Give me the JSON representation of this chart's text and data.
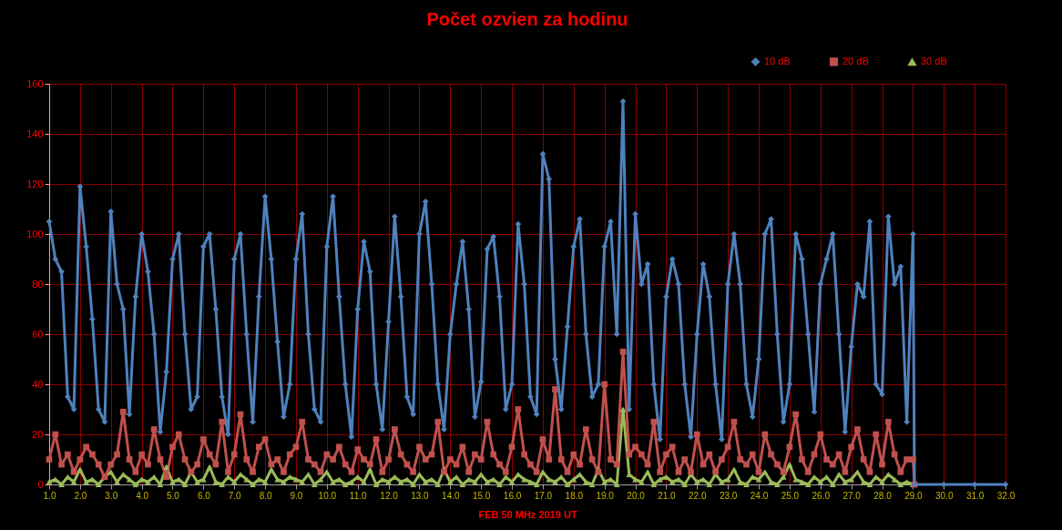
{
  "chart_data": {
    "type": "line",
    "title": "Počet ozvien za hodinu",
    "xlabel": "FEB 50 MHz  2019  UT",
    "x": [
      1,
      1.2,
      1.4,
      1.6,
      1.8,
      2,
      2.2,
      2.4,
      2.6,
      2.8,
      3,
      3.2,
      3.4,
      3.6,
      3.8,
      4,
      4.2,
      4.4,
      4.6,
      4.8,
      5,
      5.2,
      5.4,
      5.6,
      5.8,
      6,
      6.2,
      6.4,
      6.6,
      6.8,
      7,
      7.2,
      7.4,
      7.6,
      7.8,
      8,
      8.2,
      8.4,
      8.6,
      8.8,
      9,
      9.2,
      9.4,
      9.6,
      9.8,
      10,
      10.2,
      10.4,
      10.6,
      10.8,
      11,
      11.2,
      11.4,
      11.6,
      11.8,
      12,
      12.2,
      12.4,
      12.6,
      12.8,
      13,
      13.2,
      13.4,
      13.6,
      13.8,
      14,
      14.2,
      14.4,
      14.6,
      14.8,
      15,
      15.2,
      15.4,
      15.6,
      15.8,
      16,
      16.2,
      16.4,
      16.6,
      16.8,
      17,
      17.2,
      17.4,
      17.6,
      17.8,
      18,
      18.2,
      18.4,
      18.6,
      18.8,
      19,
      19.2,
      19.4,
      19.6,
      19.8,
      20,
      20.2,
      20.4,
      20.6,
      20.8,
      21,
      21.2,
      21.4,
      21.6,
      21.8,
      22,
      22.2,
      22.4,
      22.6,
      22.8,
      23,
      23.2,
      23.4,
      23.6,
      23.8,
      24,
      24.2,
      24.4,
      24.6,
      24.8,
      25,
      25.2,
      25.4,
      25.6,
      25.8,
      26,
      26.2,
      26.4,
      26.6,
      26.8,
      27,
      27.2,
      27.4,
      27.6,
      27.8,
      28,
      28.2,
      28.4,
      28.6,
      28.8,
      29,
      29.05,
      30,
      31,
      32
    ],
    "series": [
      {
        "name": "10 dB",
        "color": "#4f81bd",
        "marker": "diamond",
        "values": [
          105,
          90,
          85,
          35,
          30,
          119,
          95,
          66,
          30,
          25,
          109,
          80,
          70,
          28,
          75,
          100,
          85,
          60,
          21,
          45,
          90,
          100,
          60,
          30,
          35,
          95,
          100,
          70,
          35,
          20,
          90,
          100,
          60,
          25,
          75,
          115,
          90,
          57,
          27,
          40,
          90,
          108,
          60,
          30,
          25,
          95,
          115,
          75,
          40,
          19,
          70,
          97,
          85,
          40,
          22,
          65,
          107,
          75,
          35,
          28,
          100,
          113,
          80,
          40,
          22,
          60,
          80,
          97,
          70,
          27,
          41,
          94,
          99,
          75,
          30,
          40,
          104,
          80,
          35,
          28,
          132,
          122,
          50,
          30,
          63,
          95,
          106,
          60,
          35,
          40,
          95,
          105,
          60,
          153,
          30,
          108,
          80,
          88,
          40,
          18,
          75,
          90,
          80,
          40,
          19,
          60,
          88,
          75,
          40,
          18,
          80,
          100,
          80,
          40,
          27,
          50,
          100,
          106,
          60,
          25,
          40,
          100,
          90,
          60,
          29,
          80,
          90,
          100,
          60,
          21,
          55,
          80,
          75,
          105,
          40,
          36,
          107,
          80,
          87,
          25,
          100,
          0,
          0,
          0,
          0
        ]
      },
      {
        "name": "20 dB",
        "color": "#c0504d",
        "marker": "square",
        "values": [
          10,
          20,
          8,
          12,
          5,
          10,
          15,
          12,
          8,
          3,
          8,
          12,
          29,
          10,
          5,
          12,
          8,
          22,
          10,
          3,
          15,
          20,
          10,
          5,
          8,
          18,
          12,
          8,
          25,
          5,
          12,
          28,
          10,
          5,
          15,
          18,
          8,
          10,
          5,
          12,
          15,
          25,
          10,
          8,
          5,
          12,
          10,
          15,
          8,
          5,
          14,
          10,
          8,
          18,
          5,
          10,
          22,
          12,
          8,
          5,
          15,
          10,
          12,
          25,
          5,
          10,
          8,
          15,
          5,
          12,
          10,
          25,
          12,
          8,
          5,
          15,
          30,
          12,
          8,
          5,
          18,
          10,
          38,
          10,
          5,
          12,
          8,
          22,
          10,
          5,
          40,
          10,
          8,
          53,
          12,
          15,
          12,
          8,
          25,
          5,
          12,
          15,
          5,
          10,
          5,
          20,
          8,
          12,
          5,
          10,
          15,
          25,
          10,
          8,
          12,
          5,
          20,
          12,
          8,
          5,
          15,
          28,
          10,
          5,
          12,
          20,
          10,
          8,
          12,
          5,
          15,
          22,
          10,
          5,
          20,
          8,
          25,
          12,
          5,
          10,
          10,
          0,
          null,
          null,
          null
        ]
      },
      {
        "name": "30 dB",
        "color": "#9bbb59",
        "marker": "triangle",
        "values": [
          1,
          2,
          0,
          3,
          1,
          6,
          1,
          2,
          0,
          3,
          5,
          1,
          4,
          2,
          0,
          2,
          1,
          3,
          0,
          7,
          1,
          2,
          0,
          5,
          1,
          2,
          7,
          1,
          0,
          3,
          1,
          4,
          2,
          0,
          2,
          1,
          6,
          2,
          1,
          3,
          2,
          1,
          4,
          0,
          2,
          5,
          1,
          2,
          0,
          1,
          3,
          1,
          6,
          0,
          2,
          1,
          3,
          1,
          2,
          0,
          4,
          1,
          2,
          0,
          6,
          1,
          3,
          0,
          2,
          1,
          4,
          1,
          2,
          0,
          3,
          1,
          4,
          2,
          1,
          0,
          5,
          2,
          1,
          3,
          0,
          2,
          4,
          1,
          0,
          6,
          1,
          2,
          0,
          30,
          4,
          2,
          1,
          5,
          0,
          2,
          3,
          1,
          2,
          0,
          4,
          1,
          2,
          0,
          4,
          1,
          2,
          6,
          1,
          0,
          3,
          2,
          5,
          1,
          0,
          3,
          8,
          2,
          1,
          0,
          3,
          1,
          3,
          0,
          4,
          1,
          2,
          5,
          1,
          0,
          3,
          1,
          4,
          2,
          0,
          1,
          0,
          0,
          null,
          null,
          null
        ]
      }
    ],
    "xlim": [
      1,
      32
    ],
    "xticks": [
      {
        "value": 1,
        "label": "1.0"
      },
      {
        "value": 2,
        "label": "2.0"
      },
      {
        "value": 3,
        "label": "3.0"
      },
      {
        "value": 4,
        "label": "4.0"
      },
      {
        "value": 5,
        "label": "5.0"
      },
      {
        "value": 6,
        "label": "6.0"
      },
      {
        "value": 7,
        "label": "7.0"
      },
      {
        "value": 8,
        "label": "8.0"
      },
      {
        "value": 9,
        "label": "9.0"
      },
      {
        "value": 10,
        "label": "10.0"
      },
      {
        "value": 11,
        "label": "11.0"
      },
      {
        "value": 12,
        "label": "12.0"
      },
      {
        "value": 13,
        "label": "13.0"
      },
      {
        "value": 14,
        "label": "14.0"
      },
      {
        "value": 15,
        "label": "15.0"
      },
      {
        "value": 16,
        "label": "16.0"
      },
      {
        "value": 17,
        "label": "17.0"
      },
      {
        "value": 18,
        "label": "18.0"
      },
      {
        "value": 19,
        "label": "19.0"
      },
      {
        "value": 20,
        "label": "20.0"
      },
      {
        "value": 21,
        "label": "21.0"
      },
      {
        "value": 22,
        "label": "22.0"
      },
      {
        "value": 23,
        "label": "23.0"
      },
      {
        "value": 24,
        "label": "24.0"
      },
      {
        "value": 25,
        "label": "25.0"
      },
      {
        "value": 26,
        "label": "26.0"
      },
      {
        "value": 27,
        "label": "27.0"
      },
      {
        "value": 28,
        "label": "28.0"
      },
      {
        "value": 29,
        "label": "29.0"
      },
      {
        "value": 30,
        "label": "30.0"
      },
      {
        "value": 31,
        "label": "31.0"
      },
      {
        "value": 32,
        "label": "32.0"
      }
    ],
    "ylim": [
      0,
      160
    ],
    "yticks": [
      0,
      20,
      40,
      60,
      80,
      100,
      120,
      140,
      160
    ],
    "grid": true,
    "legend": "top right",
    "line_style": "solid"
  }
}
